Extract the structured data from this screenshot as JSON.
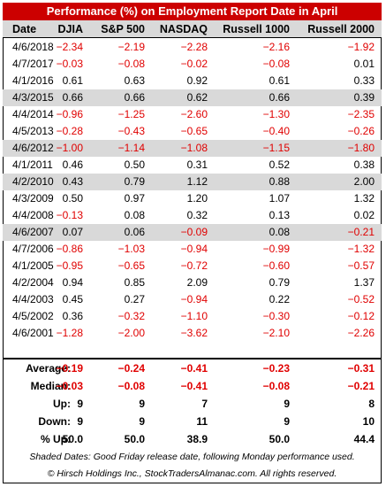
{
  "title": "Performance (%) on Employment Report Date in April",
  "columns": [
    "Date",
    "DJIA",
    "S&P 500",
    "NASDAQ",
    "Russell 1000",
    "Russell 2000"
  ],
  "rows": [
    {
      "date": "4/6/2018",
      "v": [
        "−2.34",
        "−2.19",
        "−2.28",
        "−2.16",
        "−1.92"
      ],
      "shaded": false
    },
    {
      "date": "4/7/2017",
      "v": [
        "−0.03",
        "−0.08",
        "−0.02",
        "−0.08",
        "0.01"
      ],
      "shaded": false
    },
    {
      "date": "4/1/2016",
      "v": [
        "0.61",
        "0.63",
        "0.92",
        "0.61",
        "0.33"
      ],
      "shaded": false
    },
    {
      "date": "4/3/2015",
      "v": [
        "0.66",
        "0.66",
        "0.62",
        "0.66",
        "0.39"
      ],
      "shaded": true
    },
    {
      "date": "4/4/2014",
      "v": [
        "−0.96",
        "−1.25",
        "−2.60",
        "−1.30",
        "−2.35"
      ],
      "shaded": false
    },
    {
      "date": "4/5/2013",
      "v": [
        "−0.28",
        "−0.43",
        "−0.65",
        "−0.40",
        "−0.26"
      ],
      "shaded": false
    },
    {
      "date": "4/6/2012",
      "v": [
        "−1.00",
        "−1.14",
        "−1.08",
        "−1.15",
        "−1.80"
      ],
      "shaded": true
    },
    {
      "date": "4/1/2011",
      "v": [
        "0.46",
        "0.50",
        "0.31",
        "0.52",
        "0.38"
      ],
      "shaded": false
    },
    {
      "date": "4/2/2010",
      "v": [
        "0.43",
        "0.79",
        "1.12",
        "0.88",
        "2.00"
      ],
      "shaded": true
    },
    {
      "date": "4/3/2009",
      "v": [
        "0.50",
        "0.97",
        "1.20",
        "1.07",
        "1.32"
      ],
      "shaded": false
    },
    {
      "date": "4/4/2008",
      "v": [
        "−0.13",
        "0.08",
        "0.32",
        "0.13",
        "0.02"
      ],
      "shaded": false
    },
    {
      "date": "4/6/2007",
      "v": [
        "0.07",
        "0.06",
        "−0.09",
        "0.08",
        "−0.21"
      ],
      "shaded": true
    },
    {
      "date": "4/7/2006",
      "v": [
        "−0.86",
        "−1.03",
        "−0.94",
        "−0.99",
        "−1.32"
      ],
      "shaded": false
    },
    {
      "date": "4/1/2005",
      "v": [
        "−0.95",
        "−0.65",
        "−0.72",
        "−0.60",
        "−0.57"
      ],
      "shaded": false
    },
    {
      "date": "4/2/2004",
      "v": [
        "0.94",
        "0.85",
        "2.09",
        "0.79",
        "1.37"
      ],
      "shaded": false
    },
    {
      "date": "4/4/2003",
      "v": [
        "0.45",
        "0.27",
        "−0.94",
        "0.22",
        "−0.52"
      ],
      "shaded": false
    },
    {
      "date": "4/5/2002",
      "v": [
        "0.36",
        "−0.32",
        "−1.10",
        "−0.30",
        "−0.12"
      ],
      "shaded": false
    },
    {
      "date": "4/6/2001",
      "v": [
        "−1.28",
        "−2.00",
        "−3.62",
        "−2.10",
        "−2.26"
      ],
      "shaded": false
    }
  ],
  "stats": [
    {
      "label": "Average:",
      "v": [
        "−0.19",
        "−0.24",
        "−0.41",
        "−0.23",
        "−0.31"
      ]
    },
    {
      "label": "Median:",
      "v": [
        "−0.03",
        "−0.08",
        "−0.41",
        "−0.08",
        "−0.21"
      ]
    },
    {
      "label": "Up:",
      "v": [
        "9",
        "9",
        "7",
        "9",
        "8"
      ]
    },
    {
      "label": "Down:",
      "v": [
        "9",
        "9",
        "11",
        "9",
        "10"
      ]
    },
    {
      "label": "% Up:",
      "v": [
        "50.0",
        "50.0",
        "38.9",
        "50.0",
        "44.4"
      ]
    }
  ],
  "footnote": "Shaded Dates: Good Friday release date, following Monday performance used.",
  "copyright": "© Hirsch Holdings Inc., StockTradersAlmanac.com. All rights reserved.",
  "colors": {
    "title_bg": "#cc0000",
    "negative": "#e00000",
    "shade": "#d9d9d9"
  }
}
